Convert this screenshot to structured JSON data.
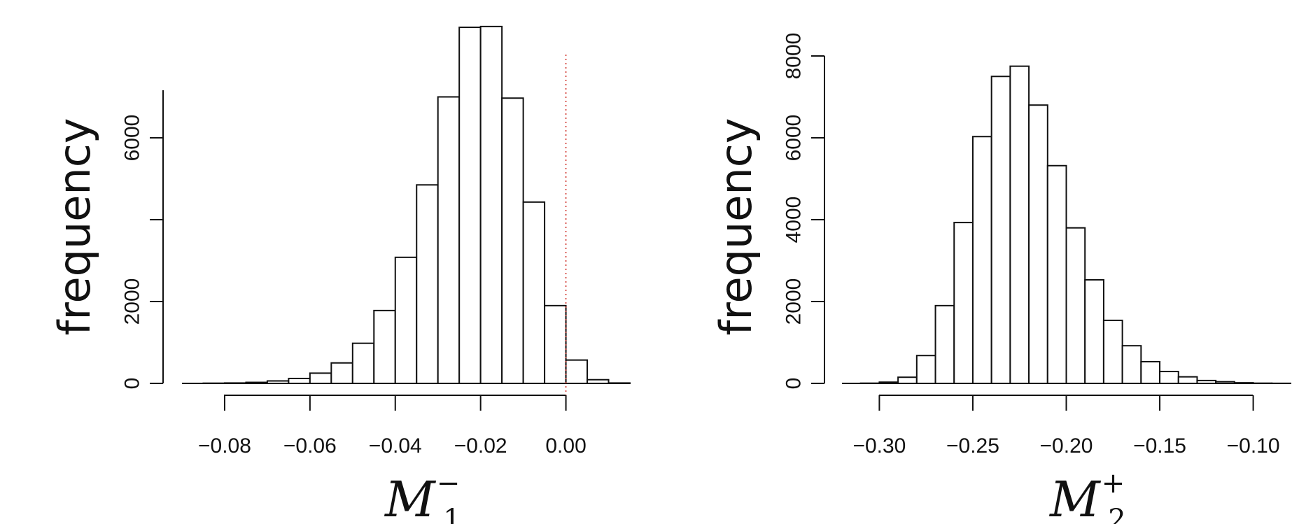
{
  "chart_data": [
    {
      "type": "bar",
      "subtype": "histogram",
      "ylabel": "frequency",
      "xlabel": {
        "base": "M",
        "sub": "1",
        "sup": "−"
      },
      "xlim": [
        -0.09,
        0.015
      ],
      "ylim": [
        0,
        8000
      ],
      "x_ticks": [
        -0.08,
        -0.06,
        -0.04,
        -0.02,
        0.0
      ],
      "x_tick_labels": [
        "−0.08",
        "−0.06",
        "−0.04",
        "−0.02",
        "0.00"
      ],
      "y_ticks": [
        0,
        2000,
        4000,
        6000,
        8000
      ],
      "y_tick_labels": [
        "0",
        "2000",
        "",
        "6000",
        ""
      ],
      "reference_line": {
        "x": 0.0,
        "color": "#d0342c",
        "style": "dotted"
      },
      "bin_edges": [
        -0.09,
        -0.085,
        -0.08,
        -0.075,
        -0.07,
        -0.065,
        -0.06,
        -0.055,
        -0.05,
        -0.045,
        -0.04,
        -0.035,
        -0.03,
        -0.025,
        -0.02,
        -0.015,
        -0.01,
        -0.005,
        0.0,
        0.005,
        0.01,
        0.015
      ],
      "values": [
        0,
        5,
        10,
        25,
        60,
        120,
        250,
        500,
        980,
        1780,
        3080,
        4850,
        7000,
        8700,
        8720,
        6970,
        4430,
        1900,
        570,
        90,
        10
      ]
    },
    {
      "type": "bar",
      "subtype": "histogram",
      "ylabel": "frequency",
      "xlabel": {
        "base": "M",
        "sub": "2",
        "sup": "+"
      },
      "xlim": [
        -0.32,
        -0.08
      ],
      "ylim": [
        0,
        8000
      ],
      "x_ticks": [
        -0.3,
        -0.25,
        -0.2,
        -0.15,
        -0.1
      ],
      "x_tick_labels": [
        "−0.30",
        "−0.25",
        "−0.20",
        "−0.15",
        "−0.10"
      ],
      "y_ticks": [
        0,
        2000,
        4000,
        6000,
        8000
      ],
      "y_tick_labels": [
        "0",
        "2000",
        "4000",
        "6000",
        "8000"
      ],
      "bin_edges": [
        -0.32,
        -0.31,
        -0.3,
        -0.29,
        -0.28,
        -0.27,
        -0.26,
        -0.25,
        -0.24,
        -0.23,
        -0.22,
        -0.21,
        -0.2,
        -0.19,
        -0.18,
        -0.17,
        -0.16,
        -0.15,
        -0.14,
        -0.13,
        -0.12,
        -0.11,
        -0.1,
        -0.09,
        -0.08
      ],
      "values": [
        0,
        5,
        30,
        150,
        680,
        1900,
        3930,
        6030,
        7500,
        7750,
        6800,
        5320,
        3800,
        2530,
        1540,
        920,
        530,
        290,
        160,
        70,
        40,
        15,
        5,
        2
      ]
    }
  ]
}
